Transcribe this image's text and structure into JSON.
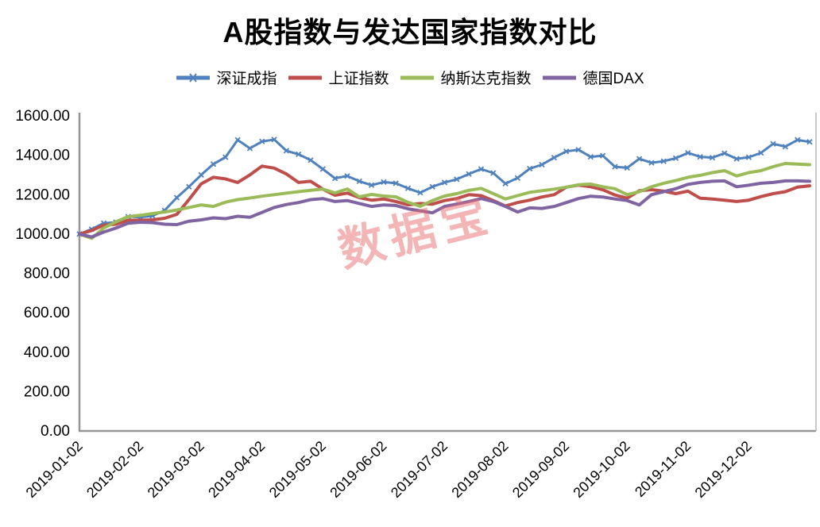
{
  "title": "A股指数与发达国家指数对比",
  "watermark": "数据宝",
  "chart_data": {
    "type": "line",
    "title": "A股指数与发达国家指数对比",
    "xlabel": "",
    "ylabel": "",
    "ylim": [
      0,
      1600
    ],
    "grid": false,
    "legend_position": "top",
    "background": "#ffffff",
    "axis_color": "#969696",
    "y_tick_labels": [
      "0.00",
      "200.00",
      "400.00",
      "600.00",
      "800.00",
      "1000.00",
      "1200.00",
      "1400.00",
      "1600.00"
    ],
    "y_tick_values": [
      0,
      200,
      400,
      600,
      800,
      1000,
      1200,
      1400,
      1600
    ],
    "x_tick_labels": [
      "2019-01-02",
      "2019-02-02",
      "2019-03-02",
      "2019-04-02",
      "2019-05-02",
      "2019-06-02",
      "2019-07-02",
      "2019-08-02",
      "2019-09-02",
      "2019-10-02",
      "2019-11-02",
      "2019-12-02"
    ],
    "series": [
      {
        "name": "深证成指",
        "color": "#4E81BD",
        "marker": "x",
        "values": [
          1000,
          1025,
          1055,
          1060,
          1088,
          1085,
          1092,
          1120,
          1185,
          1240,
          1300,
          1355,
          1390,
          1478,
          1435,
          1470,
          1480,
          1423,
          1405,
          1375,
          1330,
          1283,
          1295,
          1268,
          1248,
          1264,
          1258,
          1232,
          1210,
          1240,
          1262,
          1278,
          1305,
          1330,
          1310,
          1256,
          1285,
          1332,
          1352,
          1388,
          1420,
          1428,
          1392,
          1398,
          1342,
          1336,
          1382,
          1362,
          1370,
          1385,
          1412,
          1392,
          1388,
          1410,
          1382,
          1390,
          1412,
          1458,
          1444,
          1478,
          1468
        ]
      },
      {
        "name": "上证指数",
        "color": "#BF4E4B",
        "marker": "none",
        "values": [
          1000,
          1018,
          1045,
          1050,
          1070,
          1070,
          1072,
          1080,
          1100,
          1175,
          1255,
          1288,
          1280,
          1262,
          1300,
          1345,
          1335,
          1305,
          1262,
          1268,
          1228,
          1197,
          1208,
          1185,
          1172,
          1178,
          1165,
          1148,
          1155,
          1152,
          1170,
          1180,
          1200,
          1195,
          1170,
          1142,
          1160,
          1172,
          1188,
          1200,
          1238,
          1248,
          1240,
          1225,
          1198,
          1182,
          1220,
          1225,
          1218,
          1205,
          1218,
          1182,
          1178,
          1172,
          1165,
          1172,
          1190,
          1205,
          1215,
          1238,
          1245
        ]
      },
      {
        "name": "纳斯达克指数",
        "color": "#9BBB59",
        "marker": "none",
        "values": [
          1000,
          978,
          1030,
          1062,
          1088,
          1095,
          1104,
          1112,
          1122,
          1135,
          1148,
          1140,
          1162,
          1175,
          1183,
          1192,
          1200,
          1208,
          1215,
          1222,
          1228,
          1209,
          1229,
          1189,
          1201,
          1193,
          1189,
          1161,
          1141,
          1170,
          1193,
          1205,
          1222,
          1232,
          1205,
          1178,
          1195,
          1212,
          1220,
          1228,
          1238,
          1250,
          1254,
          1240,
          1230,
          1200,
          1215,
          1240,
          1258,
          1272,
          1288,
          1298,
          1312,
          1322,
          1295,
          1312,
          1322,
          1342,
          1358,
          1355,
          1352
        ]
      },
      {
        "name": "德国DAX",
        "color": "#8064A2",
        "marker": "none",
        "values": [
          1000,
          985,
          1010,
          1030,
          1055,
          1060,
          1058,
          1050,
          1048,
          1065,
          1072,
          1082,
          1078,
          1090,
          1085,
          1110,
          1135,
          1150,
          1160,
          1175,
          1180,
          1165,
          1170,
          1155,
          1140,
          1148,
          1145,
          1128,
          1118,
          1108,
          1140,
          1152,
          1165,
          1180,
          1165,
          1140,
          1112,
          1133,
          1130,
          1140,
          1160,
          1180,
          1192,
          1188,
          1178,
          1170,
          1148,
          1200,
          1215,
          1230,
          1252,
          1262,
          1268,
          1270,
          1240,
          1248,
          1258,
          1262,
          1270,
          1270,
          1268
        ]
      }
    ]
  }
}
